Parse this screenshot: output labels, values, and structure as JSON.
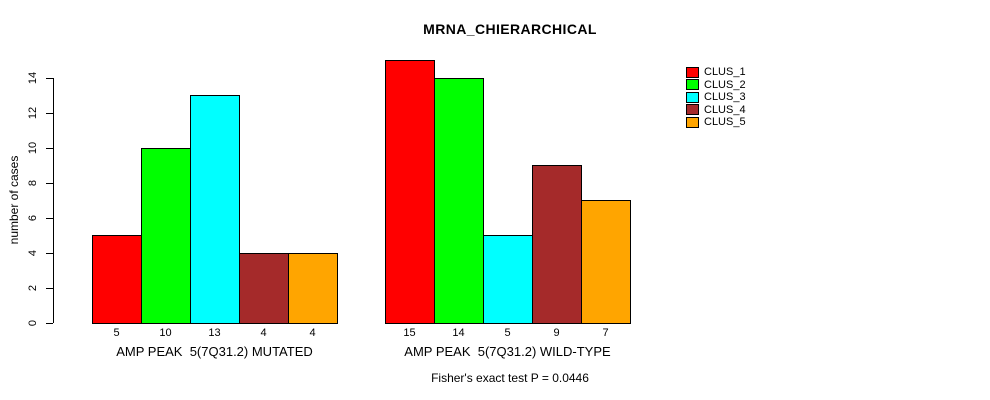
{
  "chart_data": {
    "type": "bar",
    "title": "MRNA_CHIERARCHICAL",
    "ylabel": "number of cases",
    "xlabel": "",
    "ylim": [
      0,
      15
    ],
    "yticks": [
      0,
      2,
      4,
      6,
      8,
      10,
      12,
      14
    ],
    "grid": false,
    "legend_position": "right",
    "series_colors": [
      "#FF0000",
      "#00FF00",
      "#00FFFF",
      "#A52A2A",
      "#FFA500"
    ],
    "legend": [
      {
        "label": "CLUS_1",
        "color": "#FF0000"
      },
      {
        "label": "CLUS_2",
        "color": "#00FF00"
      },
      {
        "label": "CLUS_3",
        "color": "#00FFFF"
      },
      {
        "label": "CLUS_4",
        "color": "#A52A2A"
      },
      {
        "label": "CLUS_5",
        "color": "#FFA500"
      }
    ],
    "groups": [
      {
        "label": "AMP PEAK  5(7Q31.2) MUTATED",
        "values": [
          5,
          10,
          13,
          4,
          4
        ]
      },
      {
        "label": "AMP PEAK  5(7Q31.2) WILD-TYPE",
        "values": [
          15,
          14,
          5,
          9,
          7
        ]
      }
    ],
    "footnote": "Fisher's exact test P = 0.0446",
    "axis_color": "#000000",
    "background_color": "#FFFFFF"
  }
}
